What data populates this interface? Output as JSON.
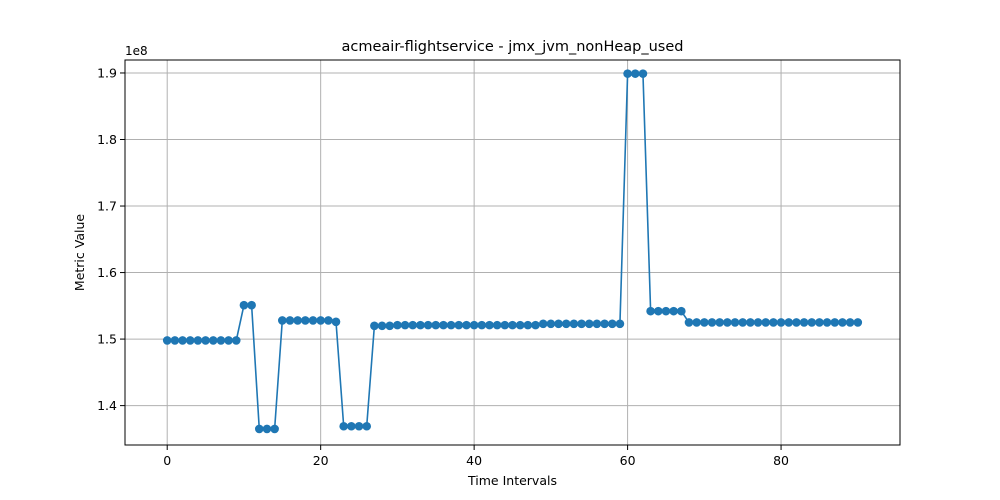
{
  "chart_data": {
    "type": "line",
    "title": "acmeair-flightservice - jmx_jvm_nonHeap_used",
    "xlabel": "Time Intervals",
    "ylabel": "Metric Value",
    "y_offset_label": "1e8",
    "xlim": [
      -5.5,
      95.5
    ],
    "ylim": [
      1.3408,
      1.9195
    ],
    "x_ticks": [
      0,
      20,
      40,
      60,
      80
    ],
    "x_tick_labels": [
      "0",
      "20",
      "40",
      "60",
      "80"
    ],
    "y_ticks": [
      1.4,
      1.5,
      1.6,
      1.7,
      1.8,
      1.9
    ],
    "y_tick_labels": [
      "1.4",
      "1.5",
      "1.6",
      "1.7",
      "1.8",
      "1.9"
    ],
    "grid": true,
    "marker": "circle",
    "series": [
      {
        "color": "#1f77b4",
        "values": [
          1.498,
          1.498,
          1.498,
          1.498,
          1.498,
          1.498,
          1.498,
          1.498,
          1.498,
          1.498,
          1.551,
          1.551,
          1.365,
          1.365,
          1.365,
          1.528,
          1.528,
          1.528,
          1.528,
          1.528,
          1.528,
          1.528,
          1.526,
          1.369,
          1.369,
          1.369,
          1.369,
          1.52,
          1.52,
          1.52,
          1.521,
          1.521,
          1.521,
          1.521,
          1.521,
          1.521,
          1.521,
          1.521,
          1.521,
          1.521,
          1.521,
          1.521,
          1.521,
          1.521,
          1.521,
          1.521,
          1.521,
          1.521,
          1.521,
          1.523,
          1.523,
          1.523,
          1.523,
          1.523,
          1.523,
          1.523,
          1.523,
          1.523,
          1.523,
          1.523,
          1.899,
          1.899,
          1.899,
          1.542,
          1.542,
          1.542,
          1.542,
          1.542,
          1.525,
          1.525,
          1.525,
          1.525,
          1.525,
          1.525,
          1.525,
          1.525,
          1.525,
          1.525,
          1.525,
          1.525,
          1.525,
          1.525,
          1.525,
          1.525,
          1.525,
          1.525,
          1.525,
          1.525,
          1.525,
          1.525,
          1.525
        ]
      }
    ]
  }
}
